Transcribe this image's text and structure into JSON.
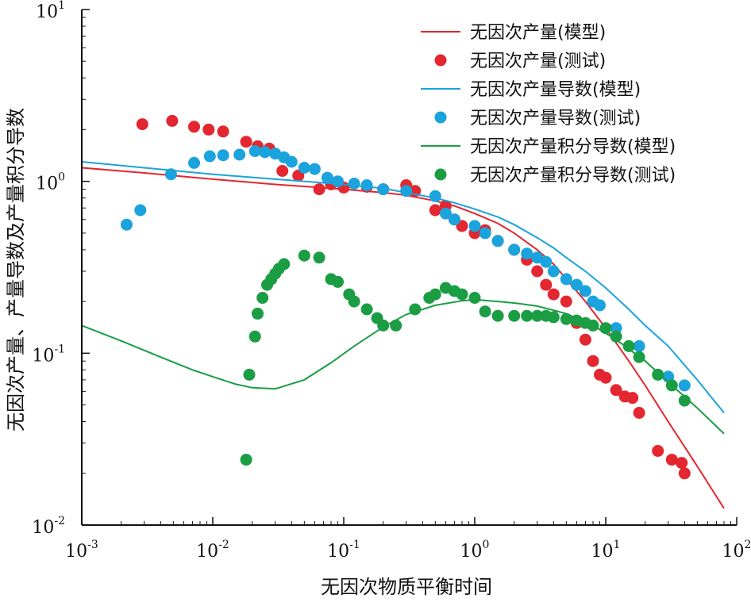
{
  "chart_data": {
    "type": "scatter",
    "xlabel": "无因次物质平衡时间",
    "ylabel": "无因次产量、产量导数及产量积分导数",
    "x_scale": "log",
    "y_scale": "log",
    "xlim": [
      0.001,
      100
    ],
    "ylim": [
      0.01,
      10
    ],
    "x_ticks": [
      {
        "value": 0.001,
        "base": "10",
        "exp": "-3"
      },
      {
        "value": 0.01,
        "base": "10",
        "exp": "-2"
      },
      {
        "value": 0.1,
        "base": "10",
        "exp": "-1"
      },
      {
        "value": 1,
        "base": "10",
        "exp": "0"
      },
      {
        "value": 10,
        "base": "10",
        "exp": "1"
      },
      {
        "value": 100,
        "base": "10",
        "exp": "2"
      }
    ],
    "y_ticks": [
      {
        "value": 0.01,
        "base": "10",
        "exp": "-2"
      },
      {
        "value": 0.1,
        "base": "10",
        "exp": "-1"
      },
      {
        "value": 1,
        "base": "10",
        "exp": "0"
      },
      {
        "value": 10,
        "base": "10",
        "exp": "1"
      }
    ],
    "legend_position": "top-right",
    "series": [
      {
        "name": "无因次产量(模型)",
        "kind": "line",
        "color": "#e3262f",
        "x": [
          0.001,
          0.003,
          0.01,
          0.03,
          0.1,
          0.2,
          0.3,
          0.5,
          0.7,
          1,
          1.5,
          2,
          3,
          4,
          5,
          7,
          10,
          15,
          20,
          30,
          50,
          80
        ],
        "y": [
          1.2,
          1.12,
          1.03,
          0.96,
          0.9,
          0.86,
          0.83,
          0.77,
          0.72,
          0.65,
          0.57,
          0.5,
          0.4,
          0.33,
          0.27,
          0.2,
          0.14,
          0.09,
          0.065,
          0.04,
          0.022,
          0.0125
        ]
      },
      {
        "name": "无因次产量(测试)",
        "kind": "scatter",
        "color": "#e3262f",
        "x": [
          0.0029,
          0.0049,
          0.0072,
          0.0093,
          0.012,
          0.018,
          0.022,
          0.027,
          0.034,
          0.045,
          0.065,
          0.08,
          0.1,
          0.15,
          0.2,
          0.3,
          0.35,
          0.5,
          0.6,
          0.7,
          0.8,
          1.0,
          1.2,
          1.5,
          2.0,
          2.5,
          3.0,
          3.5,
          4.0,
          5.0,
          6.0,
          7.0,
          8.0,
          9.0,
          10,
          12,
          14,
          16,
          18,
          25,
          32,
          38,
          40
        ],
        "y": [
          2.15,
          2.25,
          2.08,
          2.0,
          1.95,
          1.7,
          1.6,
          1.55,
          1.15,
          1.08,
          0.9,
          0.96,
          0.92,
          0.93,
          0.9,
          0.95,
          0.88,
          0.68,
          0.72,
          0.6,
          0.55,
          0.5,
          0.52,
          0.45,
          0.4,
          0.35,
          0.3,
          0.25,
          0.22,
          0.2,
          0.15,
          0.12,
          0.09,
          0.075,
          0.072,
          0.061,
          0.056,
          0.055,
          0.045,
          0.027,
          0.024,
          0.023,
          0.02
        ]
      },
      {
        "name": "无因次产量导数(模型)",
        "kind": "line",
        "color": "#1aa3dc",
        "x": [
          0.001,
          0.003,
          0.01,
          0.03,
          0.1,
          0.2,
          0.3,
          0.5,
          0.7,
          1,
          1.5,
          2,
          3,
          4,
          5,
          7,
          10,
          15,
          20,
          30,
          50,
          80
        ],
        "y": [
          1.3,
          1.2,
          1.1,
          1.03,
          0.96,
          0.91,
          0.86,
          0.8,
          0.75,
          0.69,
          0.62,
          0.56,
          0.47,
          0.41,
          0.36,
          0.3,
          0.24,
          0.18,
          0.145,
          0.11,
          0.07,
          0.045
        ]
      },
      {
        "name": "无因次产量导数(测试)",
        "kind": "scatter",
        "color": "#1aa3dc",
        "x": [
          0.0022,
          0.0028,
          0.0048,
          0.0072,
          0.0095,
          0.012,
          0.016,
          0.021,
          0.025,
          0.03,
          0.035,
          0.04,
          0.05,
          0.06,
          0.075,
          0.09,
          0.12,
          0.15,
          0.2,
          0.3,
          0.5,
          0.6,
          0.7,
          1.0,
          1.2,
          1.5,
          2.0,
          2.5,
          3.0,
          3.5,
          4.0,
          5.0,
          6.0,
          7.0,
          8.0,
          9.0,
          12,
          18,
          30,
          40
        ],
        "y": [
          0.56,
          0.68,
          1.1,
          1.28,
          1.4,
          1.42,
          1.43,
          1.5,
          1.48,
          1.45,
          1.38,
          1.3,
          1.2,
          1.18,
          1.05,
          1.0,
          0.97,
          0.95,
          0.9,
          0.88,
          0.82,
          0.65,
          0.6,
          0.55,
          0.5,
          0.45,
          0.4,
          0.38,
          0.36,
          0.34,
          0.3,
          0.27,
          0.25,
          0.23,
          0.2,
          0.19,
          0.14,
          0.11,
          0.073,
          0.065
        ]
      },
      {
        "name": "无因次产量积分导数(模型)",
        "kind": "line",
        "color": "#1a9d43",
        "x": [
          0.001,
          0.002,
          0.004,
          0.007,
          0.01,
          0.015,
          0.02,
          0.03,
          0.05,
          0.08,
          0.12,
          0.2,
          0.3,
          0.5,
          0.8,
          1,
          1.5,
          2,
          3,
          5,
          8,
          12,
          20,
          30,
          50,
          80
        ],
        "y": [
          0.145,
          0.118,
          0.095,
          0.08,
          0.073,
          0.066,
          0.063,
          0.062,
          0.07,
          0.088,
          0.11,
          0.142,
          0.168,
          0.19,
          0.202,
          0.205,
          0.2,
          0.196,
          0.188,
          0.17,
          0.145,
          0.12,
          0.09,
          0.068,
          0.048,
          0.034
        ]
      },
      {
        "name": "无因次产量积分导数(测试)",
        "kind": "scatter",
        "color": "#1a9d43",
        "x": [
          0.018,
          0.019,
          0.021,
          0.022,
          0.024,
          0.026,
          0.028,
          0.03,
          0.032,
          0.035,
          0.05,
          0.065,
          0.08,
          0.09,
          0.11,
          0.12,
          0.15,
          0.18,
          0.2,
          0.25,
          0.35,
          0.45,
          0.5,
          0.6,
          0.7,
          0.8,
          1.0,
          1.2,
          1.5,
          2.0,
          2.5,
          3.0,
          3.5,
          4.0,
          5.0,
          6.0,
          7.0,
          8.0,
          10,
          12,
          15,
          18,
          25,
          32,
          40
        ],
        "y": [
          0.024,
          0.075,
          0.125,
          0.17,
          0.21,
          0.25,
          0.27,
          0.29,
          0.31,
          0.33,
          0.37,
          0.36,
          0.27,
          0.26,
          0.22,
          0.2,
          0.18,
          0.16,
          0.145,
          0.145,
          0.18,
          0.21,
          0.22,
          0.24,
          0.23,
          0.22,
          0.21,
          0.175,
          0.165,
          0.165,
          0.165,
          0.165,
          0.165,
          0.162,
          0.158,
          0.155,
          0.15,
          0.145,
          0.14,
          0.125,
          0.11,
          0.095,
          0.075,
          0.065,
          0.053
        ]
      }
    ]
  }
}
